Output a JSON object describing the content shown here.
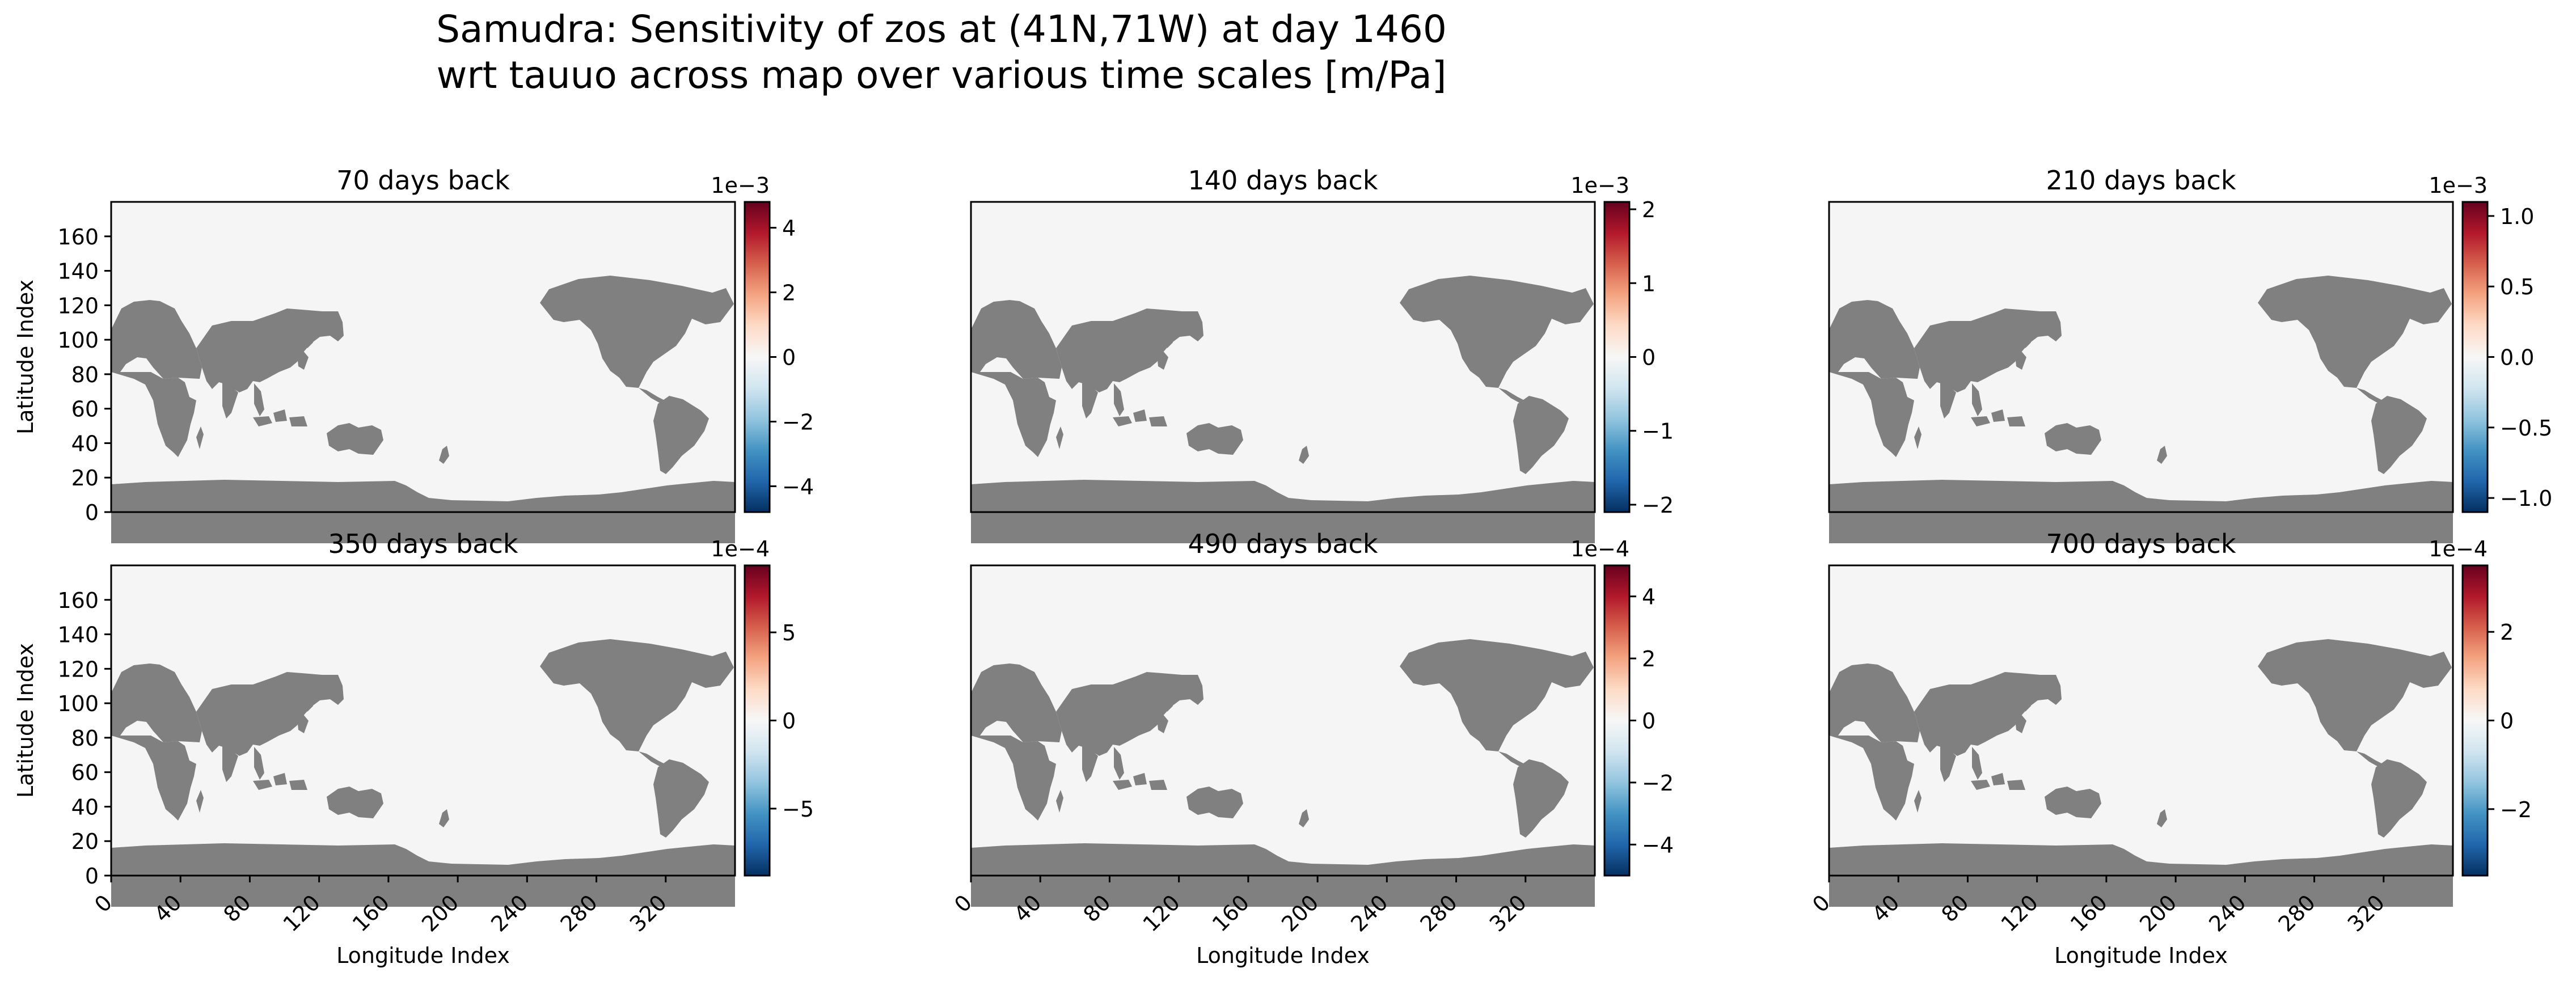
{
  "figure": {
    "title_line1": "Samudra: Sensitivity of zos at (41N,71W) at day 1460",
    "title_line2": "wrt tauuo across map over various time scales [m/Pa]"
  },
  "chart_data": [
    {
      "type": "heatmap",
      "title": "70 days back",
      "xlabel": "",
      "ylabel": "Latitude Index",
      "xlim": [
        0,
        360
      ],
      "ylim": [
        0,
        180
      ],
      "x_ticks": [],
      "y_ticks": [
        0,
        20,
        40,
        60,
        80,
        100,
        120,
        140,
        160
      ],
      "colorbar": {
        "cmap": "RdBu_r",
        "multiplier": "1e−3",
        "range": [
          -4.8,
          4.8
        ],
        "ticks": [
          4,
          2,
          0,
          -2,
          -4
        ],
        "tick_labels": [
          "4",
          "2",
          "0",
          "−2",
          "−4"
        ]
      },
      "land_color": "#808080",
      "ocean_color": "#f5f5f5"
    },
    {
      "type": "heatmap",
      "title": "140 days back",
      "xlabel": "",
      "ylabel": "",
      "xlim": [
        0,
        360
      ],
      "ylim": [
        0,
        180
      ],
      "x_ticks": [],
      "y_ticks": [],
      "colorbar": {
        "cmap": "RdBu_r",
        "multiplier": "1e−3",
        "range": [
          -2.1,
          2.1
        ],
        "ticks": [
          2,
          1,
          0,
          -1,
          -2
        ],
        "tick_labels": [
          "2",
          "1",
          "0",
          "−1",
          "−2"
        ]
      },
      "land_color": "#808080",
      "ocean_color": "#f5f5f5"
    },
    {
      "type": "heatmap",
      "title": "210 days back",
      "xlabel": "",
      "ylabel": "",
      "xlim": [
        0,
        360
      ],
      "ylim": [
        0,
        180
      ],
      "x_ticks": [],
      "y_ticks": [],
      "colorbar": {
        "cmap": "RdBu_r",
        "multiplier": "1e−3",
        "range": [
          -1.1,
          1.1
        ],
        "ticks": [
          1.0,
          0.5,
          0.0,
          -0.5,
          -1.0
        ],
        "tick_labels": [
          "1.0",
          "0.5",
          "0.0",
          "−0.5",
          "−1.0"
        ]
      },
      "land_color": "#808080",
      "ocean_color": "#f5f5f5"
    },
    {
      "type": "heatmap",
      "title": "350 days back",
      "xlabel": "Longitude Index",
      "ylabel": "Latitude Index",
      "xlim": [
        0,
        360
      ],
      "ylim": [
        0,
        180
      ],
      "x_ticks": [
        0,
        40,
        80,
        120,
        160,
        200,
        240,
        280,
        320
      ],
      "y_ticks": [
        0,
        20,
        40,
        60,
        80,
        100,
        120,
        140,
        160
      ],
      "colorbar": {
        "cmap": "RdBu_r",
        "multiplier": "1e−4",
        "range": [
          -8.8,
          8.8
        ],
        "ticks": [
          5,
          0,
          -5
        ],
        "tick_labels": [
          "5",
          "0",
          "−5"
        ]
      },
      "land_color": "#808080",
      "ocean_color": "#f5f5f5"
    },
    {
      "type": "heatmap",
      "title": "490 days back",
      "xlabel": "Longitude Index",
      "ylabel": "",
      "xlim": [
        0,
        360
      ],
      "ylim": [
        0,
        180
      ],
      "x_ticks": [
        0,
        40,
        80,
        120,
        160,
        200,
        240,
        280,
        320
      ],
      "y_ticks": [],
      "colorbar": {
        "cmap": "RdBu_r",
        "multiplier": "1e−4",
        "range": [
          -5.0,
          5.0
        ],
        "ticks": [
          4,
          2,
          0,
          -2,
          -4
        ],
        "tick_labels": [
          "4",
          "2",
          "0",
          "−2",
          "−4"
        ]
      },
      "land_color": "#808080",
      "ocean_color": "#f5f5f5"
    },
    {
      "type": "heatmap",
      "title": "700 days back",
      "xlabel": "Longitude Index",
      "ylabel": "",
      "xlim": [
        0,
        360
      ],
      "ylim": [
        0,
        180
      ],
      "x_ticks": [
        0,
        40,
        80,
        120,
        160,
        200,
        240,
        280,
        320
      ],
      "y_ticks": [],
      "colorbar": {
        "cmap": "RdBu_r",
        "multiplier": "1e−4",
        "range": [
          -3.5,
          3.5
        ],
        "ticks": [
          2,
          0,
          -2
        ],
        "tick_labels": [
          "2",
          "0",
          "−2"
        ]
      },
      "land_color": "#808080",
      "ocean_color": "#f5f5f5"
    }
  ]
}
